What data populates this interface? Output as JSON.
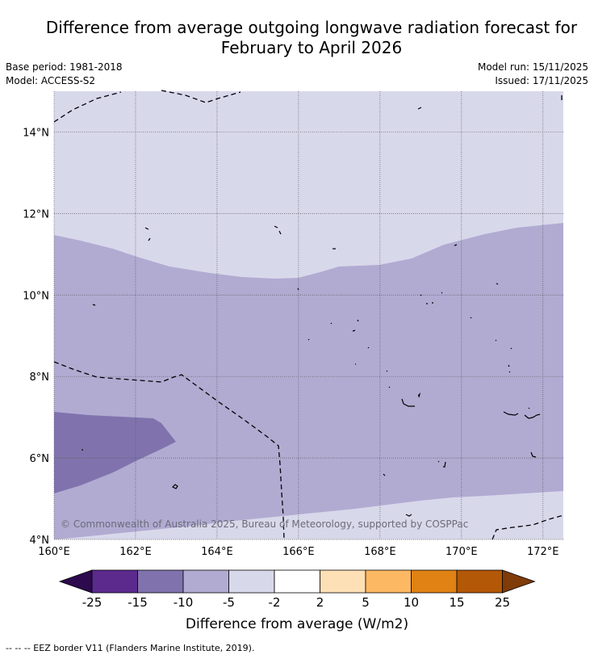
{
  "title_line1": "Difference from average outgoing longwave radiation forecast for",
  "title_line2": "February to April 2026",
  "meta_left": [
    "Base period: 1981-2018",
    "Model: ACCESS-S2"
  ],
  "meta_right": [
    "Model run: 15/11/2025",
    "Issued: 17/11/2025"
  ],
  "copyright": "© Commonwealth of Australia 2025, Bureau of Meteorology, supported by COSPPac",
  "footer": "--  --  -- EEZ border V11 (Flanders Marine Institute, 2019).",
  "map": {
    "lon_range": [
      160,
      172.5
    ],
    "lat_range": [
      4,
      15
    ],
    "lon_ticks": [
      160,
      162,
      164,
      166,
      168,
      170,
      172
    ],
    "lon_tick_labels": [
      "160°E",
      "162°E",
      "164°E",
      "166°E",
      "168°E",
      "170°E",
      "172°E"
    ],
    "lat_ticks": [
      4,
      6,
      8,
      10,
      12,
      14
    ],
    "lat_tick_labels": [
      "4°N",
      "6°N",
      "8°N",
      "10°N",
      "12°N",
      "14°N"
    ],
    "grid": true
  },
  "colorbar": {
    "title": "Difference from average (W/m2)",
    "labels": [
      "-25",
      "-15",
      "-10",
      "-5",
      "-2",
      "2",
      "5",
      "10",
      "15",
      "25"
    ],
    "colors": [
      "#2d0a4e",
      "#5b2a8c",
      "#8073ad",
      "#b1abd2",
      "#d8d8eb",
      "#ffffff",
      "#fee0b6",
      "#fdb863",
      "#e08214",
      "#b35806",
      "#7f3b08"
    ]
  }
}
